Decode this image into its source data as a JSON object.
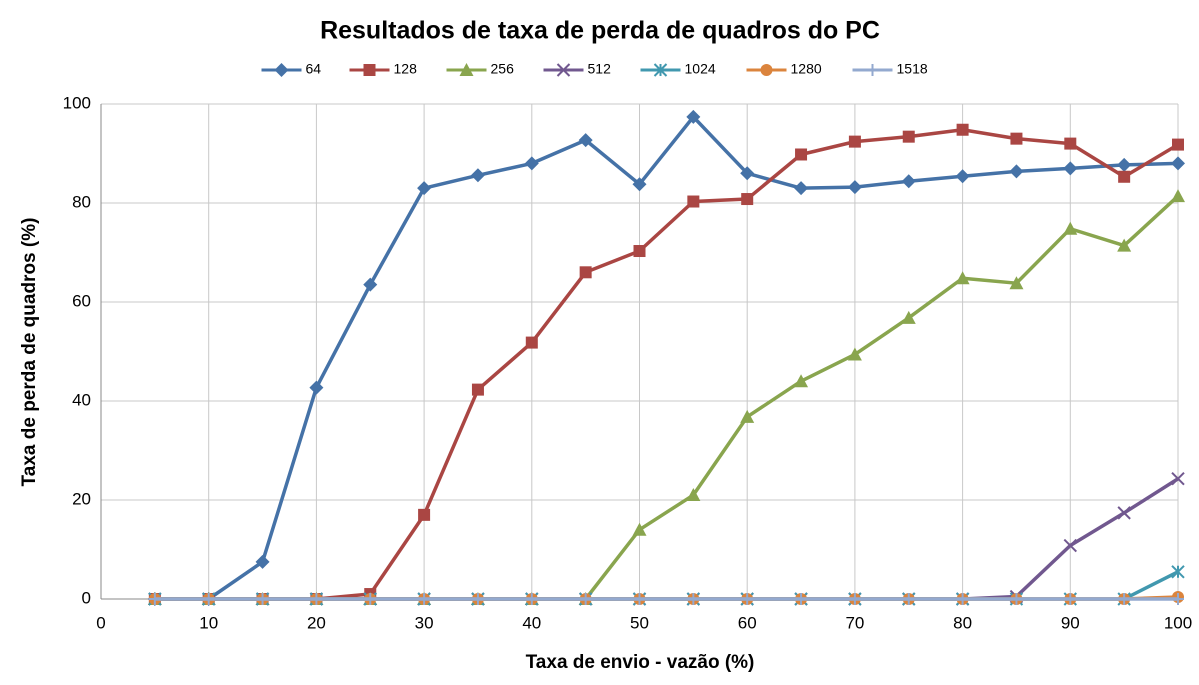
{
  "chart_data": {
    "type": "line",
    "title": "Resultados de taxa de perda de quadros do PC",
    "x_label": "Taxa de envio - vazão (%)",
    "y_label": "Taxa de perda de quadros (%)",
    "x": [
      5,
      10,
      15,
      20,
      25,
      30,
      35,
      40,
      45,
      50,
      55,
      60,
      65,
      70,
      75,
      80,
      85,
      90,
      95,
      100
    ],
    "series": [
      {
        "name": "64",
        "color": "#4572a7",
        "marker": "diamond",
        "values": [
          0,
          0,
          7.5,
          42.7,
          63.5,
          83,
          85.6,
          88,
          92.7,
          83.8,
          97.4,
          86,
          83,
          83.2,
          84.4,
          85.4,
          86.4,
          87,
          87.7,
          88
        ]
      },
      {
        "name": "128",
        "color": "#aa4643",
        "marker": "square",
        "values": [
          0,
          0,
          0,
          0,
          1,
          17,
          42.3,
          51.8,
          66,
          70.3,
          80.3,
          80.8,
          89.8,
          92.4,
          93.4,
          94.8,
          93,
          92,
          85.3,
          91.8
        ]
      },
      {
        "name": "256",
        "color": "#89a54e",
        "marker": "triangle",
        "values": [
          0,
          0,
          0,
          0,
          0,
          0,
          0,
          0,
          0,
          14,
          21,
          36.8,
          44,
          49.4,
          56.8,
          64.8,
          63.8,
          74.8,
          71.4,
          81.4
        ]
      },
      {
        "name": "512",
        "color": "#71588f",
        "marker": "x",
        "values": [
          0,
          0,
          0,
          0,
          0,
          0,
          0,
          0,
          0,
          0,
          0,
          0,
          0,
          0,
          0,
          0,
          0.5,
          10.8,
          17.4,
          24.3
        ]
      },
      {
        "name": "1024",
        "color": "#4198af",
        "marker": "star",
        "values": [
          0,
          0,
          0,
          0,
          0,
          0,
          0,
          0,
          0,
          0,
          0,
          0,
          0,
          0,
          0,
          0,
          0,
          0,
          0,
          5.5
        ]
      },
      {
        "name": "1280",
        "color": "#db843d",
        "marker": "circle",
        "values": [
          0,
          0,
          0,
          0,
          0,
          0,
          0,
          0,
          0,
          0,
          0,
          0,
          0,
          0,
          0,
          0,
          0,
          0,
          0,
          0.4
        ]
      },
      {
        "name": "1518",
        "color": "#93a9cf",
        "marker": "plus",
        "values": [
          0,
          0,
          0,
          0,
          0,
          0,
          0,
          0,
          0,
          0,
          0,
          0,
          0,
          0,
          0,
          0,
          0,
          0,
          0,
          0
        ]
      }
    ],
    "xlim": [
      0,
      100
    ],
    "xticks": [
      0,
      10,
      20,
      30,
      40,
      50,
      60,
      70,
      80,
      90,
      100
    ],
    "ylim": [
      0,
      100
    ],
    "yticks": [
      0,
      20,
      40,
      60,
      80,
      100
    ],
    "grid": true,
    "legend": "top"
  }
}
